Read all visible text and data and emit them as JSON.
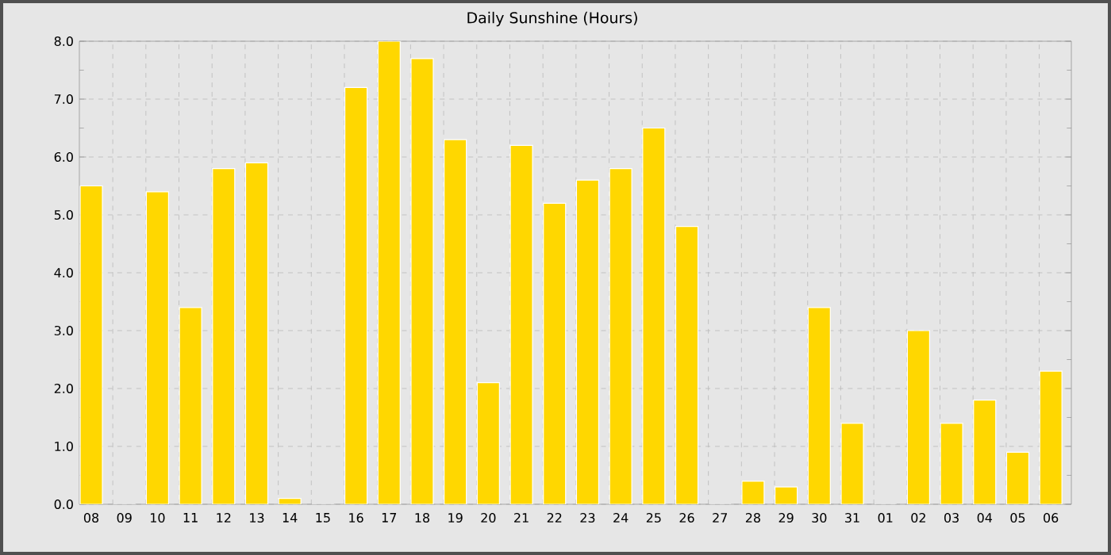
{
  "chart_data": {
    "type": "bar",
    "title": "Daily Sunshine (Hours)",
    "categories": [
      "08",
      "09",
      "10",
      "11",
      "12",
      "13",
      "14",
      "15",
      "16",
      "17",
      "18",
      "19",
      "20",
      "21",
      "22",
      "23",
      "24",
      "25",
      "26",
      "27",
      "28",
      "29",
      "30",
      "31",
      "01",
      "02",
      "03",
      "04",
      "05",
      "06"
    ],
    "values": [
      5.5,
      0,
      5.4,
      3.4,
      5.8,
      5.9,
      0.1,
      0,
      7.2,
      8.0,
      7.7,
      6.3,
      2.1,
      6.2,
      5.2,
      5.6,
      5.8,
      6.5,
      4.8,
      0,
      0.4,
      0.3,
      3.4,
      1.4,
      0,
      3.0,
      1.4,
      1.8,
      0.9,
      2.3
    ],
    "color": "#ffd700",
    "ylim": [
      0,
      8
    ],
    "yticks": [
      {
        "value": 0,
        "label": "0.0"
      },
      {
        "value": 1,
        "label": "1.0"
      },
      {
        "value": 2,
        "label": "2.0"
      },
      {
        "value": 3,
        "label": "3.0"
      },
      {
        "value": 4,
        "label": "4.0"
      },
      {
        "value": 5,
        "label": "5.0"
      },
      {
        "value": 6,
        "label": "6.0"
      },
      {
        "value": 7,
        "label": "7.0"
      },
      {
        "value": 8,
        "label": "8.0"
      }
    ],
    "grid": true
  }
}
